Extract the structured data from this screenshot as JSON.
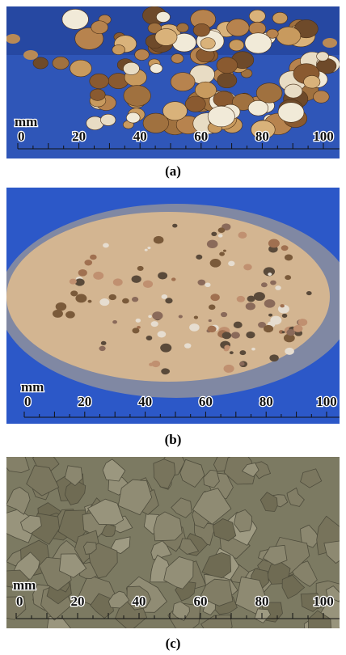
{
  "panels": [
    {
      "caption": "(a)",
      "unit": "mm",
      "scale": [
        "0",
        "20",
        "40",
        "60",
        "80",
        "100"
      ]
    },
    {
      "caption": "(b)",
      "unit": "mm",
      "scale": [
        "0",
        "20",
        "40",
        "60",
        "80",
        "100"
      ]
    },
    {
      "caption": "(c)",
      "unit": "mm",
      "scale": [
        "0",
        "20",
        "40",
        "60",
        "80",
        "100"
      ]
    }
  ]
}
